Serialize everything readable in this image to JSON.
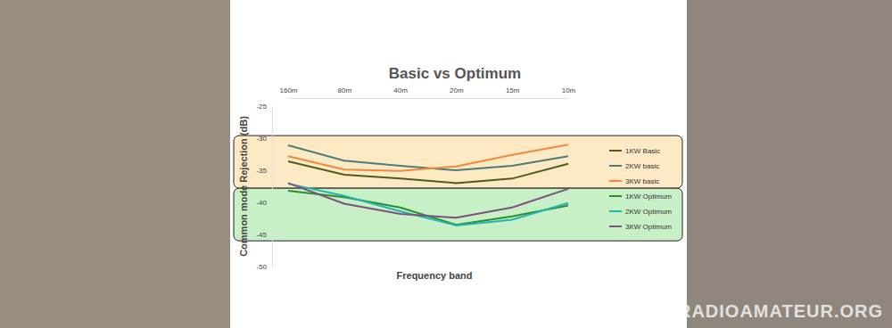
{
  "chart_data": {
    "type": "line",
    "title": "Basic vs Optimum",
    "x_label": "Frequency band",
    "y_label": "Common mode Rejection (dB)",
    "categories": [
      "160m",
      "80m",
      "40m",
      "20m",
      "15m",
      "10m"
    ],
    "series": [
      {
        "name": "1KW Basic",
        "color": "#4f5b1f",
        "values": [
          -33.6,
          -35.7,
          -36.3,
          -37.0,
          -36.3,
          -34.0
        ]
      },
      {
        "name": "2KW basic",
        "color": "#4d7c79",
        "values": [
          -31.1,
          -33.5,
          -34.3,
          -35.0,
          -34.3,
          -32.8
        ]
      },
      {
        "name": "3KW basic",
        "color": "#ef8a3c",
        "values": [
          -32.8,
          -34.9,
          -35.1,
          -34.4,
          -32.6,
          -31.0
        ]
      },
      {
        "name": "1KW Optimum",
        "color": "#2e8b2e",
        "values": [
          -38.2,
          -39.2,
          -40.8,
          -43.5,
          -42.2,
          -40.5
        ]
      },
      {
        "name": "2KW Optimum",
        "color": "#20b4b4",
        "values": [
          -37.1,
          -39.0,
          -41.4,
          -43.6,
          -42.7,
          -40.1
        ]
      },
      {
        "name": "3KW Optimum",
        "color": "#7d507d",
        "values": [
          -37.0,
          -40.2,
          -41.8,
          -42.4,
          -40.8,
          -37.9
        ]
      }
    ],
    "bands": [
      {
        "from": -29.6,
        "to": -37.8,
        "color": "#fde9c4"
      },
      {
        "from": -37.8,
        "to": -46.0,
        "color": "#c8f0c6"
      }
    ],
    "ylim": [
      -50,
      -25
    ],
    "yticks": [
      -25,
      -30,
      -35,
      -40,
      -45,
      -50
    ],
    "grid": false,
    "legend": "right",
    "annotations": [
      "RADIOAMATEUR.ORG"
    ]
  }
}
